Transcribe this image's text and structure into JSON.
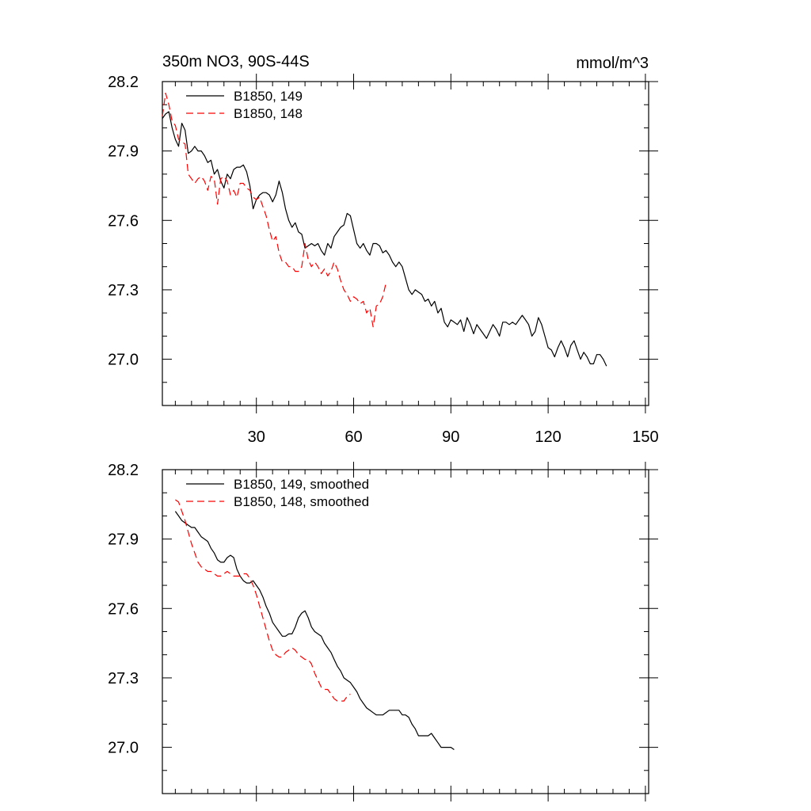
{
  "figure": {
    "title": "350m NO3, 90S-44S",
    "units": "mmol/m^3"
  },
  "chart_data": [
    {
      "type": "line",
      "title": "350m NO3, 90S-44S",
      "units": "mmol/m^3",
      "xlim": [
        1,
        151
      ],
      "ylim": [
        26.8,
        28.2
      ],
      "x_ticks": [
        30,
        60,
        90,
        120,
        150
      ],
      "x_tick_labels": [
        "30",
        "60",
        "90",
        "120",
        "150"
      ],
      "y_ticks": [
        27.0,
        27.3,
        27.6,
        27.9,
        28.2
      ],
      "y_tick_labels": [
        "27.0",
        "27.3",
        "27.6",
        "27.9",
        "28.2"
      ],
      "legend": "top-left",
      "series": [
        {
          "name": "B1850, 149",
          "color": "#000000",
          "dash": "solid",
          "x_start": 1,
          "values": [
            28.04,
            28.06,
            28.07,
            28.0,
            27.95,
            27.92,
            28.02,
            27.99,
            27.89,
            27.9,
            27.92,
            27.9,
            27.9,
            27.88,
            27.85,
            27.86,
            27.8,
            27.82,
            27.77,
            27.74,
            27.8,
            27.78,
            27.82,
            27.83,
            27.83,
            27.84,
            27.81,
            27.75,
            27.65,
            27.69,
            27.71,
            27.72,
            27.72,
            27.71,
            27.68,
            27.71,
            27.77,
            27.72,
            27.65,
            27.6,
            27.57,
            27.59,
            27.55,
            27.54,
            27.48,
            27.49,
            27.5,
            27.49,
            27.5,
            27.47,
            27.45,
            27.5,
            27.48,
            27.53,
            27.55,
            27.57,
            27.58,
            27.63,
            27.62,
            27.56,
            27.5,
            27.48,
            27.5,
            27.47,
            27.45,
            27.5,
            27.5,
            27.49,
            27.46,
            27.47,
            27.45,
            27.42,
            27.4,
            27.42,
            27.4,
            27.35,
            27.3,
            27.28,
            27.3,
            27.29,
            27.28,
            27.25,
            27.26,
            27.23,
            27.25,
            27.2,
            27.22,
            27.16,
            27.14,
            27.17,
            27.16,
            27.15,
            27.17,
            27.12,
            27.18,
            27.15,
            27.11,
            27.15,
            27.13,
            27.11,
            27.09,
            27.12,
            27.15,
            27.13,
            27.1,
            27.16,
            27.16,
            27.15,
            27.16,
            27.15,
            27.17,
            27.19,
            27.17,
            27.15,
            27.1,
            27.12,
            27.18,
            27.15,
            27.1,
            27.05,
            27.04,
            27.01,
            27.05,
            27.08,
            27.05,
            27.01,
            27.06,
            27.08,
            27.04,
            27.0,
            27.03,
            27.01,
            26.98,
            26.98,
            27.02,
            27.02,
            27.0,
            26.97
          ]
        },
        {
          "name": "B1850, 148",
          "color": "#ff0000",
          "dash": "dashed",
          "x_start": 1,
          "values": [
            28.05,
            28.15,
            28.1,
            28.03,
            28.01,
            27.95,
            27.94,
            27.93,
            27.8,
            27.78,
            27.76,
            27.78,
            27.79,
            27.77,
            27.73,
            27.79,
            27.78,
            27.67,
            27.78,
            27.79,
            27.77,
            27.71,
            27.73,
            27.7,
            27.76,
            27.76,
            27.74,
            27.73,
            27.7,
            27.69,
            27.7,
            27.66,
            27.62,
            27.56,
            27.51,
            27.53,
            27.46,
            27.42,
            27.42,
            27.4,
            27.4,
            27.38,
            27.38,
            27.4,
            27.5,
            27.43,
            27.4,
            27.42,
            27.4,
            27.37,
            27.39,
            27.36,
            27.38,
            27.42,
            27.39,
            27.34,
            27.3,
            27.28,
            27.25,
            27.27,
            27.26,
            27.24,
            27.25,
            27.2,
            27.22,
            27.14,
            27.23,
            27.24,
            27.27,
            27.33
          ]
        }
      ]
    },
    {
      "type": "line",
      "xlim": [
        1,
        151
      ],
      "ylim": [
        26.8,
        28.2
      ],
      "x_ticks": [
        30,
        60,
        90,
        120,
        150
      ],
      "y_ticks": [
        27.0,
        27.3,
        27.6,
        27.9,
        28.2
      ],
      "y_tick_labels": [
        "27.0",
        "27.3",
        "27.6",
        "27.9",
        "28.2"
      ],
      "legend": "top-left",
      "series": [
        {
          "name": "B1850, 149, smoothed",
          "color": "#000000",
          "dash": "solid",
          "x_start": 5,
          "values": [
            28.02,
            28.0,
            27.98,
            27.97,
            27.96,
            27.95,
            27.95,
            27.93,
            27.91,
            27.9,
            27.89,
            27.86,
            27.84,
            27.81,
            27.8,
            27.8,
            27.82,
            27.83,
            27.82,
            27.77,
            27.74,
            27.72,
            27.71,
            27.71,
            27.72,
            27.7,
            27.68,
            27.65,
            27.61,
            27.58,
            27.54,
            27.52,
            27.5,
            27.48,
            27.48,
            27.49,
            27.49,
            27.52,
            27.56,
            27.58,
            27.59,
            27.56,
            27.52,
            27.5,
            27.49,
            27.48,
            27.45,
            27.43,
            27.41,
            27.38,
            27.35,
            27.33,
            27.3,
            27.29,
            27.28,
            27.26,
            27.24,
            27.21,
            27.19,
            27.17,
            27.16,
            27.15,
            27.14,
            27.14,
            27.14,
            27.15,
            27.16,
            27.16,
            27.16,
            27.16,
            27.14,
            27.14,
            27.13,
            27.1,
            27.08,
            27.05,
            27.05,
            27.05,
            27.05,
            27.06,
            27.04,
            27.02,
            27.0,
            27.0,
            27.0,
            27.0,
            26.99
          ]
        },
        {
          "name": "B1850, 148, smoothed",
          "color": "#ff0000",
          "dash": "dashed",
          "x_start": 5,
          "values": [
            28.07,
            28.06,
            28.02,
            27.98,
            27.93,
            27.88,
            27.84,
            27.8,
            27.78,
            27.77,
            27.76,
            27.76,
            27.75,
            27.74,
            27.74,
            27.75,
            27.76,
            27.75,
            27.74,
            27.74,
            27.74,
            27.75,
            27.75,
            27.73,
            27.7,
            27.66,
            27.61,
            27.56,
            27.51,
            27.46,
            27.42,
            27.4,
            27.39,
            27.39,
            27.41,
            27.42,
            27.43,
            27.42,
            27.4,
            27.39,
            27.38,
            27.38,
            27.36,
            27.32,
            27.29,
            27.26,
            27.25,
            27.25,
            27.23,
            27.21,
            27.2,
            27.2,
            27.2,
            27.22,
            27.23
          ]
        }
      ]
    }
  ]
}
